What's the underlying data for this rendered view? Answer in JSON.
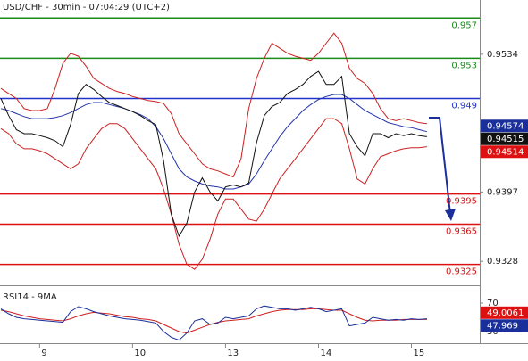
{
  "chart_data": [
    {
      "type": "line",
      "title": "USD/CHF - 30min - 07:04:29 (UTC+2)",
      "categories": [
        null,
        null,
        null,
        null,
        null,
        "9",
        null,
        null,
        null,
        null,
        null,
        null,
        null,
        null,
        null,
        null,
        null,
        "10",
        null,
        null,
        null,
        null,
        null,
        null,
        null,
        null,
        null,
        null,
        null,
        "13",
        null,
        null,
        null,
        null,
        null,
        null,
        null,
        null,
        null,
        null,
        null,
        "14",
        null,
        null,
        null,
        null,
        null,
        null,
        null,
        null,
        null,
        null,
        null,
        "15",
        null,
        null
      ],
      "ylim": [
        0.9306,
        0.9588
      ],
      "yticks": [
        0.9534,
        0.9397,
        0.9328
      ],
      "series": [
        {
          "color": "#cc2020",
          "values": [
            0.95,
            0.9495,
            0.949,
            0.948,
            0.9478,
            0.9478,
            0.948,
            0.95,
            0.9525,
            0.9535,
            0.9532,
            0.9522,
            0.951,
            0.9505,
            0.95,
            0.9497,
            0.9495,
            0.9492,
            0.949,
            0.9488,
            0.9487,
            0.9485,
            0.9475,
            0.9455,
            0.9445,
            0.9435,
            0.9425,
            0.942,
            0.9418,
            0.9415,
            0.9412,
            0.943,
            0.948,
            0.951,
            0.953,
            0.9545,
            0.954,
            0.9535,
            0.9532,
            0.953,
            0.9528,
            0.9535,
            0.9545,
            0.9555,
            0.9545,
            0.952,
            0.951,
            0.9505,
            0.9495,
            0.948,
            0.947,
            0.9468,
            0.947,
            0.9468,
            0.9466,
            0.9465
          ]
        },
        {
          "color": "#cc2020",
          "values": [
            0.946,
            0.9455,
            0.9445,
            0.944,
            0.944,
            0.9438,
            0.9435,
            0.943,
            0.9425,
            0.942,
            0.9425,
            0.944,
            0.945,
            0.946,
            0.9465,
            0.9465,
            0.946,
            0.945,
            0.944,
            0.943,
            0.942,
            0.94,
            0.9375,
            0.9345,
            0.9325,
            0.932,
            0.933,
            0.935,
            0.9375,
            0.939,
            0.939,
            0.938,
            0.937,
            0.9368,
            0.938,
            0.9395,
            0.941,
            0.942,
            0.943,
            0.944,
            0.945,
            0.946,
            0.947,
            0.947,
            0.9465,
            0.944,
            0.941,
            0.9405,
            0.942,
            0.9432,
            0.9435,
            0.9438,
            0.944,
            0.9441,
            0.9441,
            0.9442
          ]
        },
        {
          "color": "#2233aa",
          "values": [
            0.948,
            0.9478,
            0.9475,
            0.9472,
            0.947,
            0.947,
            0.947,
            0.9471,
            0.9473,
            0.9476,
            0.948,
            0.9484,
            0.9486,
            0.9486,
            0.9484,
            0.9482,
            0.948,
            0.9477,
            0.9474,
            0.947,
            0.9462,
            0.945,
            0.9435,
            0.942,
            0.9412,
            0.9408,
            0.9405,
            0.9403,
            0.9402,
            0.94,
            0.94,
            0.9402,
            0.9405,
            0.9415,
            0.9428,
            0.944,
            0.9452,
            0.9462,
            0.947,
            0.9478,
            0.9484,
            0.9489,
            0.9492,
            0.9494,
            0.9494,
            0.949,
            0.9484,
            0.9478,
            0.9474,
            0.947,
            0.9466,
            0.9464,
            0.9462,
            0.9461,
            0.9459,
            0.9457
          ]
        },
        {
          "color": "#111111",
          "values": [
            0.949,
            0.9473,
            0.9459,
            0.9455,
            0.9455,
            0.9453,
            0.9451,
            0.9448,
            0.9442,
            0.9464,
            0.9495,
            0.9504,
            0.9499,
            0.9492,
            0.9486,
            0.9483,
            0.948,
            0.9477,
            0.9473,
            0.9468,
            0.9464,
            0.9428,
            0.9375,
            0.9353,
            0.9366,
            0.9397,
            0.9411,
            0.9397,
            0.9388,
            0.9402,
            0.9404,
            0.9402,
            0.9406,
            0.9446,
            0.9473,
            0.9482,
            0.9486,
            0.9495,
            0.9499,
            0.9504,
            0.9512,
            0.9517,
            0.9504,
            0.9504,
            0.9512,
            0.9455,
            0.9442,
            0.9433,
            0.9455,
            0.9455,
            0.9451,
            0.9455,
            0.9453,
            0.9455,
            0.9453,
            0.9452
          ]
        }
      ],
      "levels": [
        {
          "value": 0.957,
          "color": "#1a8a1a"
        },
        {
          "value": 0.953,
          "color": "#1a8a1a"
        },
        {
          "value": 0.949,
          "color": "#2233cc"
        },
        {
          "value": 0.9395,
          "color": "#dd1111"
        },
        {
          "value": 0.9365,
          "color": "#dd1111"
        },
        {
          "value": 0.9325,
          "color": "#dd1111"
        }
      ],
      "price_labels": [
        {
          "value": 0.94574,
          "color": "#1a2f9a"
        },
        {
          "value": 0.94515,
          "color": "#111111"
        },
        {
          "value": 0.94514,
          "color": "#dd1111"
        }
      ]
    },
    {
      "type": "line",
      "title": "RSI14 - 9MA",
      "ylim": [
        13.75,
        91.25
      ],
      "yticks": [
        70,
        30
      ],
      "series": [
        {
          "color": "#cc2020",
          "values": [
            60,
            58,
            55,
            52,
            50,
            48,
            47,
            46,
            45,
            48,
            52,
            55,
            57,
            56,
            55,
            53,
            51,
            50,
            48,
            47,
            45,
            40,
            35,
            30,
            28,
            32,
            36,
            40,
            43,
            45,
            46,
            47,
            48,
            52,
            55,
            58,
            60,
            61,
            61,
            61,
            62,
            62,
            61,
            60,
            60,
            55,
            50,
            46,
            45,
            46,
            46,
            46,
            47,
            47,
            47,
            47
          ]
        },
        {
          "color": "#1a2f9a",
          "values": [
            62,
            55,
            50,
            48,
            47,
            46,
            45,
            44,
            43,
            58,
            65,
            62,
            58,
            55,
            52,
            50,
            48,
            47,
            46,
            44,
            42,
            30,
            22,
            18,
            28,
            45,
            48,
            40,
            42,
            50,
            48,
            50,
            52,
            62,
            66,
            64,
            62,
            62,
            60,
            62,
            64,
            62,
            58,
            60,
            62,
            38,
            40,
            42,
            50,
            48,
            46,
            47,
            46,
            48,
            47,
            48
          ]
        }
      ],
      "price_labels": [
        {
          "value": 49.0061,
          "color": "#dd1111"
        },
        {
          "value": 47.969,
          "color": "#1a2f9a"
        }
      ]
    }
  ]
}
